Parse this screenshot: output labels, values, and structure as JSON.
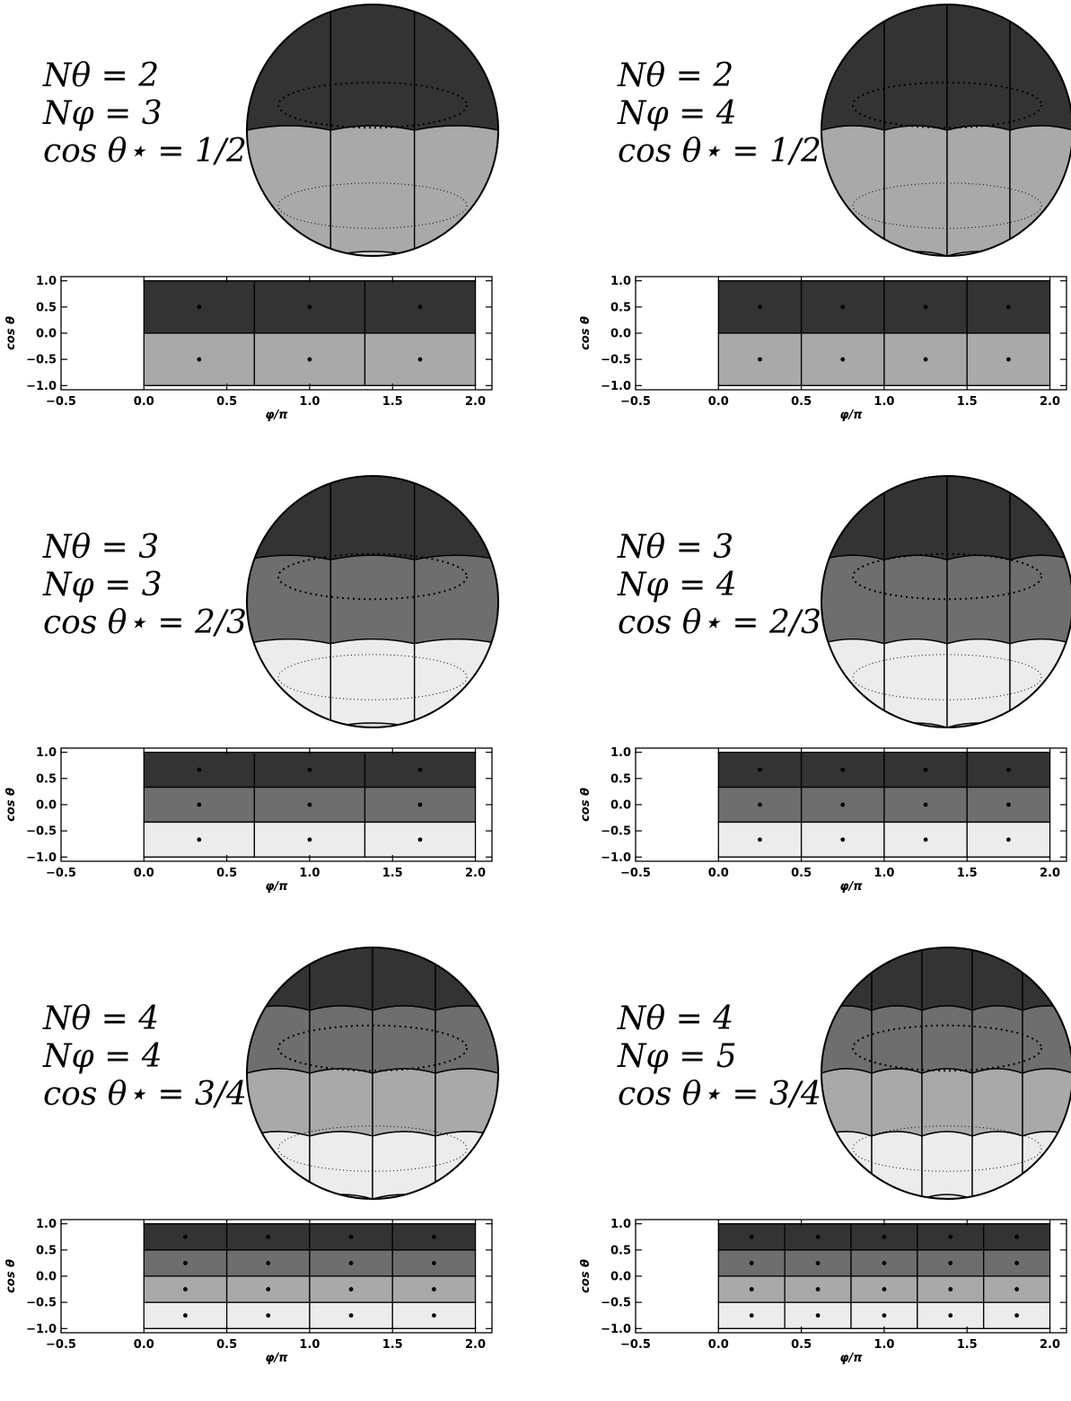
{
  "panels": [
    {
      "id": "p1",
      "n_theta": 2,
      "n_phi": 3,
      "label": {
        "n_theta": "Nθ = 2",
        "n_phi": "Nφ = 3",
        "cos": "cos θ⋆ = 1/2"
      }
    },
    {
      "id": "p2",
      "n_theta": 2,
      "n_phi": 4,
      "label": {
        "n_theta": "Nθ = 2",
        "n_phi": "Nφ = 4",
        "cos": "cos θ⋆ = 1/2"
      }
    },
    {
      "id": "p3",
      "n_theta": 3,
      "n_phi": 3,
      "label": {
        "n_theta": "Nθ = 3",
        "n_phi": "Nφ = 3",
        "cos": "cos θ⋆ = 2/3"
      }
    },
    {
      "id": "p4",
      "n_theta": 3,
      "n_phi": 4,
      "label": {
        "n_theta": "Nθ = 3",
        "n_phi": "Nφ = 4",
        "cos": "cos θ⋆ = 2/3"
      }
    },
    {
      "id": "p5",
      "n_theta": 4,
      "n_phi": 4,
      "label": {
        "n_theta": "Nθ = 4",
        "n_phi": "Nφ = 4",
        "cos": "cos θ⋆ = 3/4"
      }
    },
    {
      "id": "p6",
      "n_theta": 4,
      "n_phi": 5,
      "label": {
        "n_theta": "Nθ = 4",
        "n_phi": "Nφ = 5",
        "cos": "cos θ⋆ = 3/4"
      }
    }
  ],
  "axes": {
    "xlabel": "φ/π",
    "ylabel": "cos θ",
    "xticks": [
      "−0.5",
      "0.0",
      "0.5",
      "1.0",
      "1.5",
      "2.0"
    ],
    "yticks": [
      "1.0",
      "0.5",
      "0.0",
      "−0.5",
      "−1.0"
    ],
    "xlim": [
      -0.5,
      2.1
    ],
    "ylim": [
      -1.08,
      1.08
    ]
  },
  "colors": {
    "ring_shades": [
      "#333333",
      "#6e6e6e",
      "#a9a9a9",
      "#ececec"
    ]
  }
}
